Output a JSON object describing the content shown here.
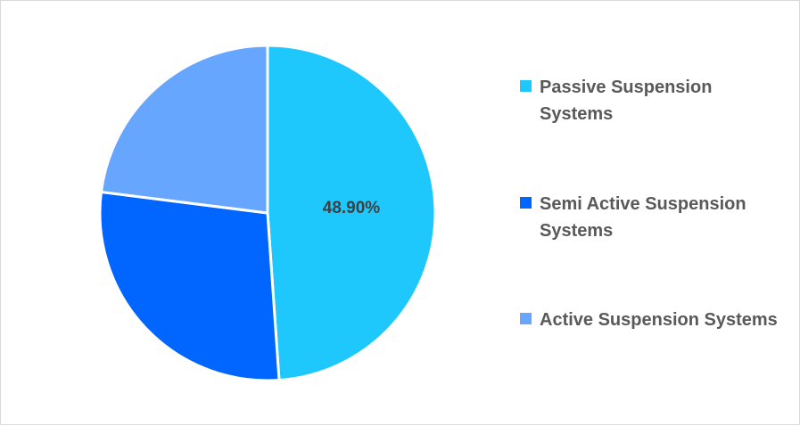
{
  "chart_data": {
    "type": "pie",
    "title": "",
    "categories": [
      "Passive Suspension Systems",
      "Semi Active Suspension Systems",
      "Active Suspension Systems"
    ],
    "values": [
      48.9,
      28.1,
      23.0
    ],
    "colors": [
      "#1EC8FD",
      "#0066FF",
      "#66A6FF"
    ],
    "data_labels": [
      "48.90%",
      "",
      ""
    ],
    "start_angle_deg": 0,
    "direction": "clockwise",
    "legend_position": "right"
  },
  "legend": {
    "items": [
      {
        "label": "Passive Suspension Systems",
        "color": "#1EC8FD"
      },
      {
        "label": "Semi Active Suspension Systems",
        "color": "#0066FF"
      },
      {
        "label": "Active Suspension Systems",
        "color": "#66A6FF"
      }
    ]
  },
  "labels": {
    "passive_value": "48.90%"
  }
}
